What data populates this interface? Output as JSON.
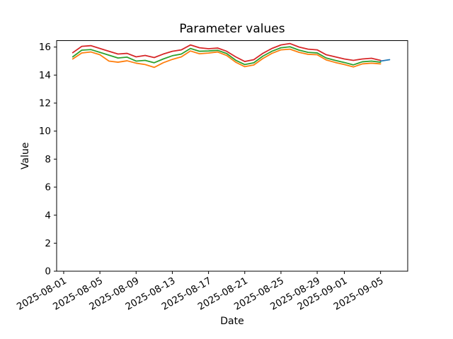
{
  "chart_data": {
    "type": "line",
    "title": "Parameter values",
    "xlabel": "Date",
    "ylabel": "Value",
    "grid": false,
    "legend": "none",
    "background": "#ffffff",
    "ylim": [
      0,
      16.46
    ],
    "yticks": [
      0,
      2,
      4,
      6,
      8,
      10,
      12,
      14,
      16
    ],
    "xtick_labels": [
      "2025-08-01",
      "2025-08-05",
      "2025-08-09",
      "2025-08-13",
      "2025-08-17",
      "2025-08-21",
      "2025-08-25",
      "2025-08-29",
      "2025-09-01",
      "2025-09-05"
    ],
    "x_tick_rotation_deg": 30,
    "x_epoch": "2025-08-01",
    "xlim_days": [
      -0.78,
      38.0
    ],
    "x_dates": [
      "2025-08-02",
      "2025-08-03",
      "2025-08-04",
      "2025-08-05",
      "2025-08-06",
      "2025-08-07",
      "2025-08-08",
      "2025-08-09",
      "2025-08-10",
      "2025-08-11",
      "2025-08-12",
      "2025-08-13",
      "2025-08-14",
      "2025-08-15",
      "2025-08-16",
      "2025-08-17",
      "2025-08-18",
      "2025-08-19",
      "2025-08-20",
      "2025-08-21",
      "2025-08-22",
      "2025-08-23",
      "2025-08-24",
      "2025-08-25",
      "2025-08-26",
      "2025-08-27",
      "2025-08-28",
      "2025-08-29",
      "2025-08-30",
      "2025-08-31",
      "2025-09-01",
      "2025-09-02",
      "2025-09-03",
      "2025-09-04",
      "2025-09-05"
    ],
    "series": [
      {
        "name": "red",
        "color": "#d62728",
        "values": [
          15.6,
          16.05,
          16.1,
          15.9,
          15.7,
          15.5,
          15.55,
          15.3,
          15.4,
          15.25,
          15.5,
          15.7,
          15.8,
          16.15,
          15.95,
          15.88,
          15.93,
          15.7,
          15.3,
          14.97,
          15.1,
          15.55,
          15.9,
          16.15,
          16.25,
          16.0,
          15.85,
          15.8,
          15.45,
          15.3,
          15.15,
          15.05,
          15.15,
          15.2,
          15.05
        ]
      },
      {
        "name": "green",
        "color": "#2ca02c",
        "values": [
          15.3,
          15.78,
          15.82,
          15.62,
          15.42,
          15.22,
          15.28,
          15.0,
          15.05,
          14.88,
          15.15,
          15.38,
          15.5,
          15.9,
          15.7,
          15.72,
          15.77,
          15.54,
          15.06,
          14.75,
          14.88,
          15.35,
          15.7,
          15.95,
          16.02,
          15.78,
          15.62,
          15.58,
          15.22,
          15.05,
          14.9,
          14.73,
          14.95,
          15.0,
          14.92
        ]
      },
      {
        "name": "orange",
        "color": "#ff7f0e",
        "values": [
          15.15,
          15.58,
          15.65,
          15.45,
          15.0,
          14.92,
          15.02,
          14.85,
          14.75,
          14.55,
          14.88,
          15.12,
          15.3,
          15.72,
          15.52,
          15.57,
          15.65,
          15.4,
          14.92,
          14.6,
          14.72,
          15.18,
          15.55,
          15.8,
          15.85,
          15.62,
          15.48,
          15.45,
          15.08,
          14.9,
          14.75,
          14.58,
          14.8,
          14.85,
          14.8
        ]
      },
      {
        "name": "blue",
        "color": "#1f77b4",
        "dates": [
          "2025-09-05",
          "2025-09-06"
        ],
        "values": [
          15.0,
          15.1
        ]
      }
    ]
  }
}
